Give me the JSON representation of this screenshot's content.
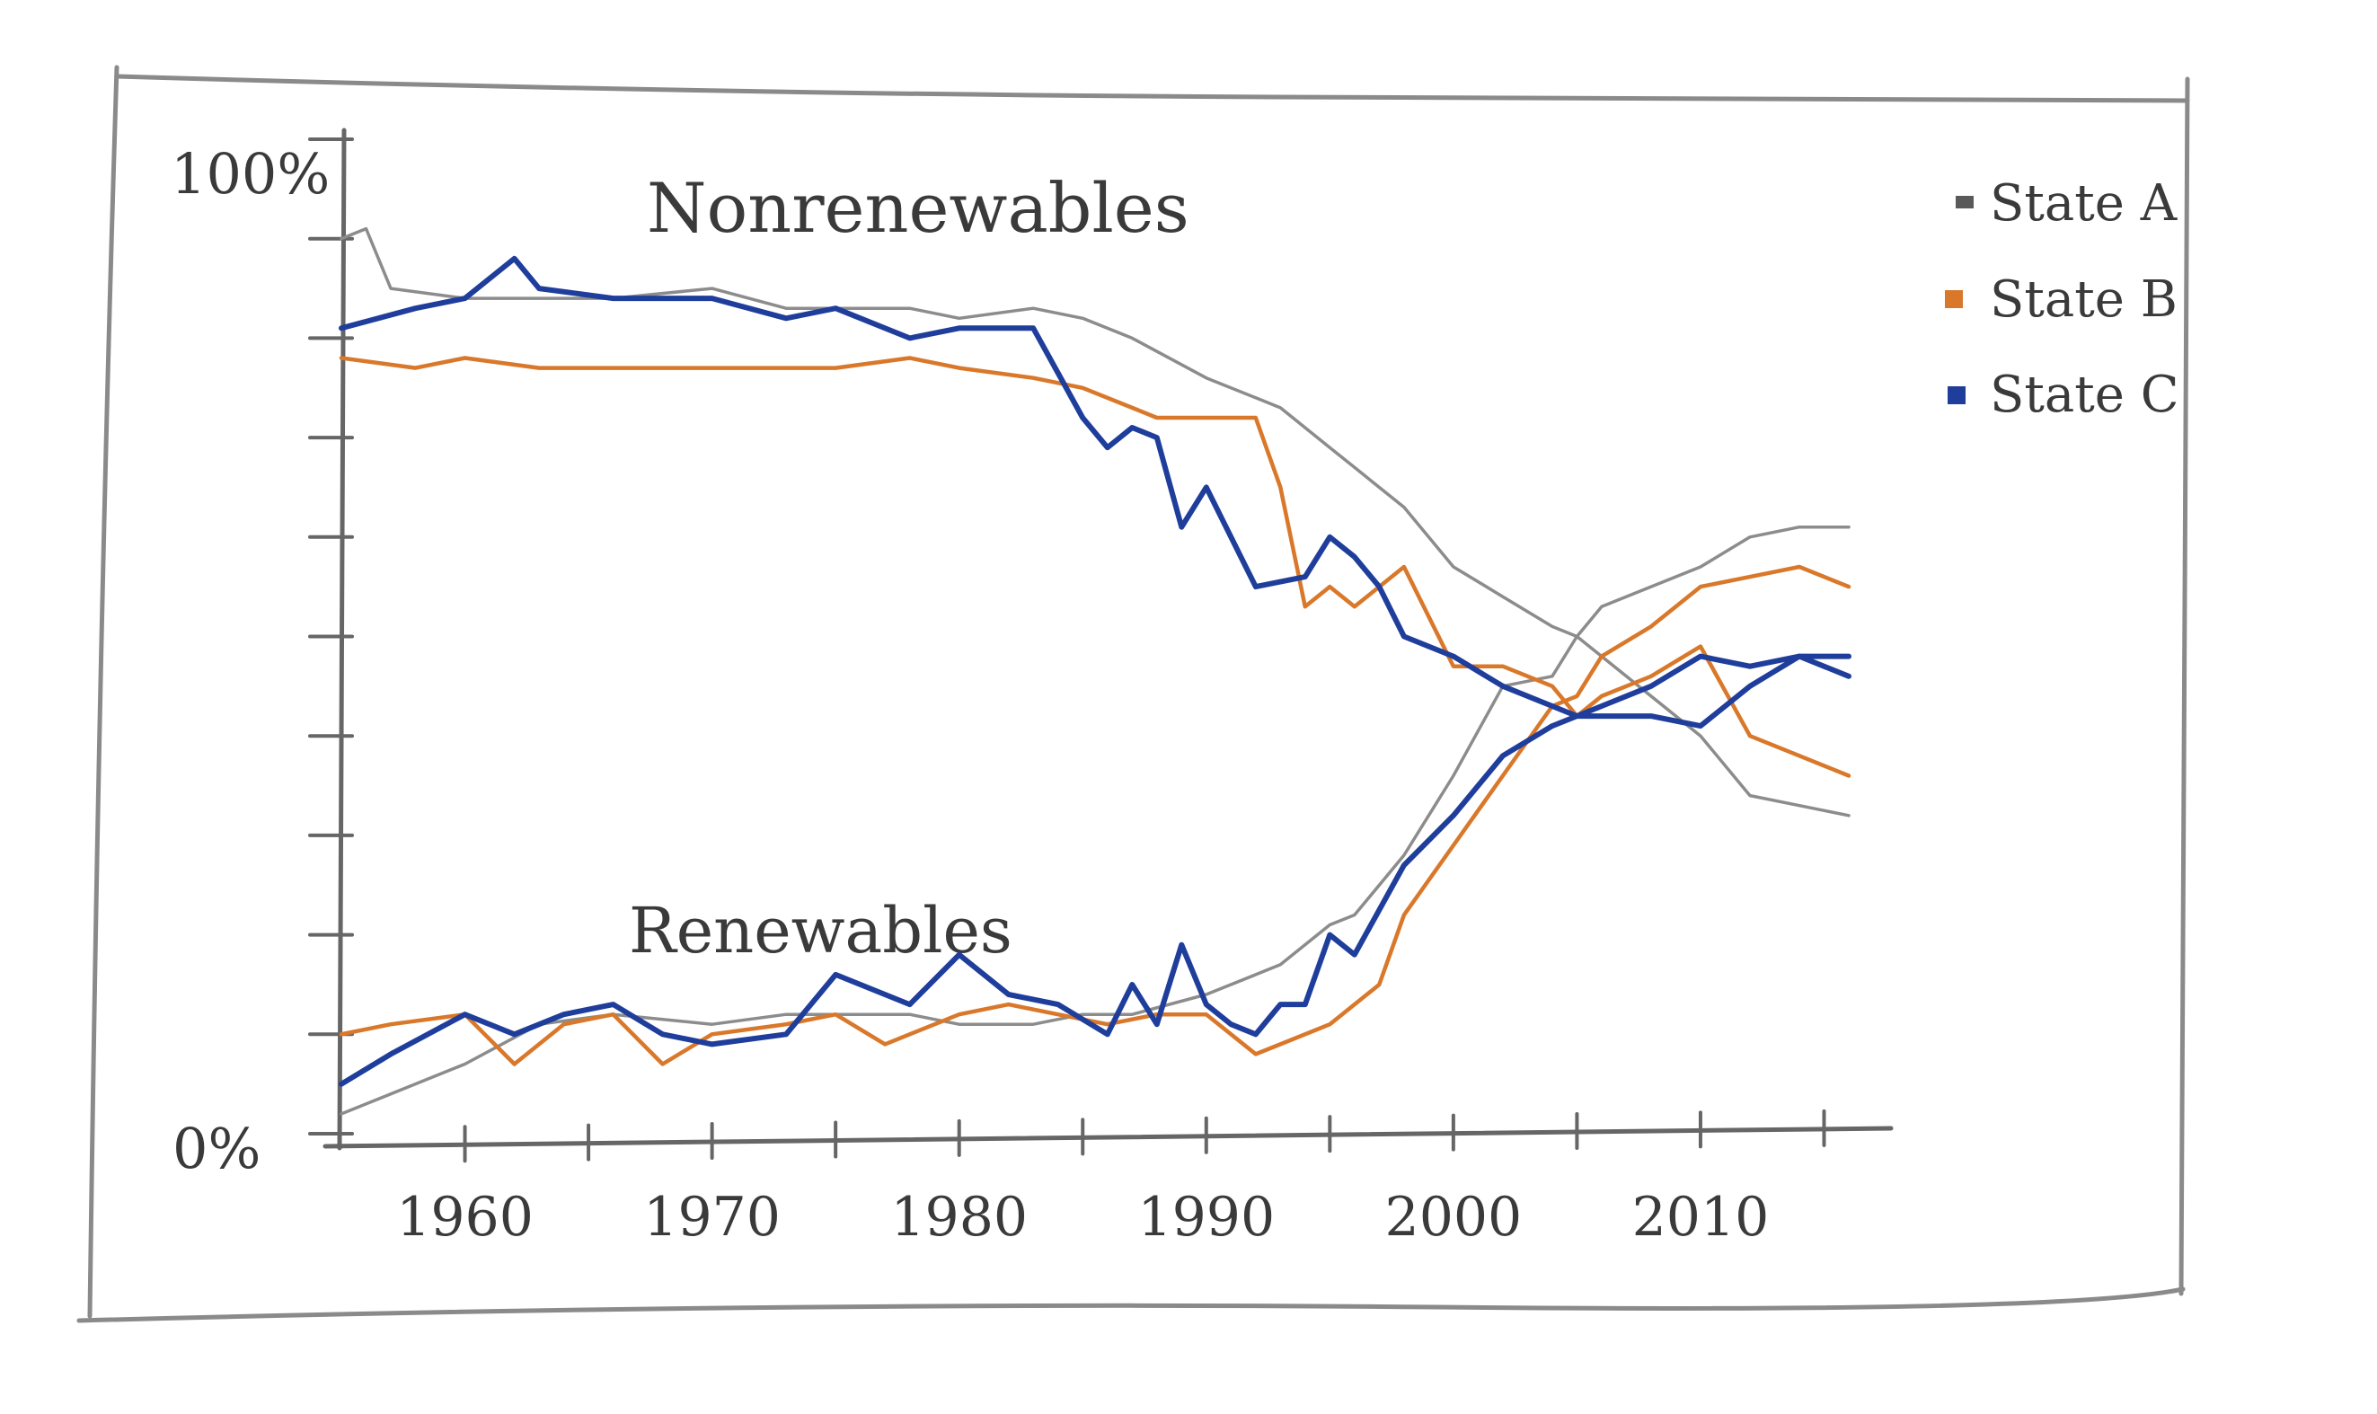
{
  "chart_data": {
    "type": "line",
    "ylim": [
      0,
      100
    ],
    "xlim": [
      1955,
      2016
    ],
    "y_tick_labels": {
      "top": "100%",
      "bottom": "0%"
    },
    "x_ticks": [
      1960,
      1970,
      1980,
      1990,
      2000,
      2010
    ],
    "x_tick_labels": [
      "1960",
      "1970",
      "1980",
      "1990",
      "2000",
      "2010"
    ],
    "annotations": {
      "upper": "Nonrenewables",
      "lower": "Renewables"
    },
    "legend": {
      "placement": "top-right",
      "entries": [
        "State A",
        "State B",
        "State C"
      ]
    },
    "grid": false,
    "series": [
      {
        "name": "State A",
        "color": "#8c8c8c",
        "nonrenewables": {
          "x": [
            1955,
            1956,
            1957,
            1960,
            1963,
            1966,
            1970,
            1973,
            1975,
            1978,
            1980,
            1983,
            1985,
            1987,
            1990,
            1992,
            1993,
            1995,
            1996,
            1998,
            2000,
            2002,
            2004,
            2005,
            2006,
            2008,
            2010,
            2012,
            2014,
            2016
          ],
          "y": [
            90,
            91,
            85,
            84,
            84,
            84,
            85,
            83,
            83,
            83,
            82,
            83,
            82,
            80,
            76,
            74,
            73,
            69,
            67,
            63,
            57,
            54,
            51,
            50,
            48,
            44,
            40,
            34,
            33,
            32
          ]
        },
        "renewables": {
          "x": [
            1955,
            1957,
            1960,
            1963,
            1966,
            1970,
            1973,
            1975,
            1978,
            1980,
            1983,
            1985,
            1987,
            1990,
            1992,
            1993,
            1995,
            1996,
            1998,
            2000,
            2002,
            2004,
            2005,
            2006,
            2008,
            2010,
            2012,
            2014,
            2016
          ],
          "y": [
            2,
            4,
            7,
            11,
            12,
            11,
            12,
            12,
            12,
            11,
            11,
            12,
            12,
            14,
            16,
            17,
            21,
            22,
            28,
            36,
            45,
            46,
            50,
            53,
            55,
            57,
            60,
            61,
            61
          ]
        }
      },
      {
        "name": "State B",
        "color": "#d9782a",
        "nonrenewables": {
          "x": [
            1955,
            1958,
            1960,
            1963,
            1966,
            1970,
            1973,
            1975,
            1978,
            1980,
            1983,
            1985,
            1987,
            1988,
            1990,
            1992,
            1993,
            1994,
            1995,
            1996,
            1998,
            2000,
            2002,
            2004,
            2005,
            2006,
            2008,
            2010,
            2012,
            2014,
            2016
          ],
          "y": [
            78,
            77,
            78,
            77,
            77,
            77,
            77,
            77,
            78,
            77,
            76,
            75,
            73,
            72,
            72,
            72,
            65,
            53,
            55,
            53,
            57,
            47,
            47,
            45,
            42,
            44,
            46,
            49,
            40,
            38,
            36
          ]
        },
        "renewables": {
          "x": [
            1955,
            1957,
            1960,
            1962,
            1964,
            1966,
            1968,
            1970,
            1973,
            1975,
            1977,
            1980,
            1982,
            1984,
            1986,
            1988,
            1990,
            1992,
            1993,
            1995,
            1997,
            1998,
            2000,
            2002,
            2004,
            2005,
            2006,
            2008,
            2010,
            2012,
            2014,
            2016
          ],
          "y": [
            10,
            11,
            12,
            7,
            11,
            12,
            7,
            10,
            11,
            12,
            9,
            12,
            13,
            12,
            11,
            12,
            12,
            8,
            9,
            11,
            15,
            22,
            29,
            36,
            43,
            44,
            48,
            51,
            55,
            56,
            57,
            55
          ]
        }
      },
      {
        "name": "State C",
        "color": "#1f3e9c",
        "nonrenewables": {
          "x": [
            1955,
            1958,
            1960,
            1962,
            1963,
            1966,
            1970,
            1973,
            1975,
            1978,
            1980,
            1983,
            1985,
            1986,
            1987,
            1988,
            1989,
            1990,
            1992,
            1994,
            1995,
            1996,
            1997,
            1998,
            2000,
            2002,
            2004,
            2005,
            2006,
            2008,
            2010,
            2012,
            2014,
            2016
          ],
          "y": [
            81,
            83,
            84,
            88,
            85,
            84,
            84,
            82,
            83,
            80,
            81,
            81,
            72,
            69,
            71,
            70,
            61,
            65,
            55,
            56,
            60,
            58,
            55,
            50,
            48,
            45,
            43,
            42,
            43,
            45,
            48,
            47,
            48,
            48
          ]
        },
        "renewables": {
          "x": [
            1955,
            1957,
            1960,
            1962,
            1964,
            1966,
            1968,
            1970,
            1973,
            1975,
            1978,
            1980,
            1982,
            1984,
            1986,
            1987,
            1988,
            1989,
            1990,
            1991,
            1992,
            1993,
            1994,
            1995,
            1996,
            1998,
            2000,
            2002,
            2004,
            2005,
            2006,
            2008,
            2010,
            2012,
            2014,
            2016
          ],
          "y": [
            5,
            8,
            12,
            10,
            12,
            13,
            10,
            9,
            10,
            16,
            13,
            18,
            14,
            13,
            10,
            15,
            11,
            19,
            13,
            11,
            10,
            13,
            13,
            20,
            18,
            27,
            32,
            38,
            41,
            42,
            42,
            42,
            41,
            45,
            48,
            46
          ]
        }
      }
    ]
  }
}
